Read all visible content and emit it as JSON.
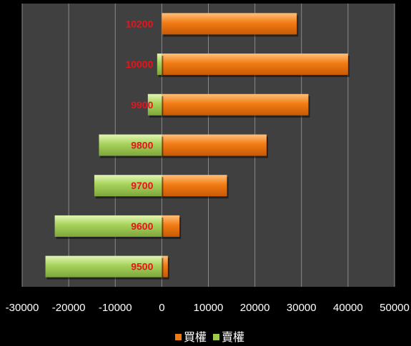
{
  "chart_data": {
    "type": "bar",
    "orientation": "horizontal",
    "categories": [
      "10200",
      "10000",
      "9900",
      "9800",
      "9700",
      "9600",
      "9500"
    ],
    "series": [
      {
        "name": "買權",
        "color": "#f07a12",
        "values": [
          29000,
          40000,
          31500,
          22500,
          14000,
          3800,
          1300
        ]
      },
      {
        "name": "賣權",
        "color": "#9ccb4a",
        "values": [
          0,
          -1000,
          -3000,
          -13500,
          -14500,
          -23000,
          -25000
        ]
      }
    ],
    "xlim": [
      -30000,
      50000
    ],
    "x_ticks": [
      "-30000",
      "-20000",
      "-10000",
      "0",
      "10000",
      "20000",
      "30000",
      "40000",
      "50000"
    ],
    "grid": true,
    "legend": "bottom",
    "title": "",
    "xlabel": "",
    "ylabel": ""
  }
}
